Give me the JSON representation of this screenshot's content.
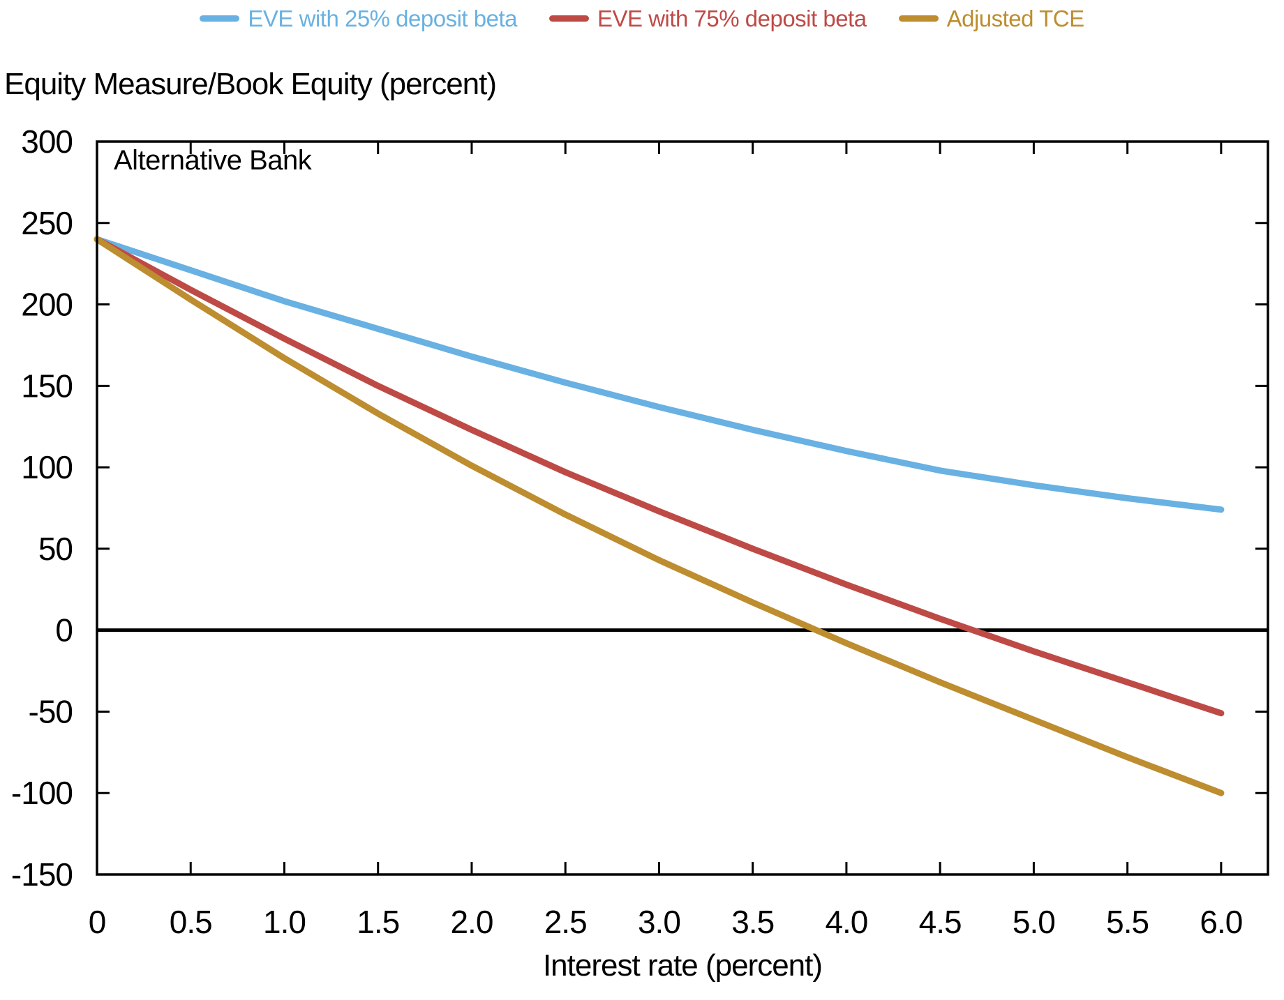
{
  "page": {
    "background": "#ffffff",
    "axis_color": "#000000"
  },
  "legend": {
    "position": "top"
  },
  "chart_data": {
    "type": "line",
    "title": "Equity Measure/Book Equity (percent)",
    "xlabel": "Interest rate (percent)",
    "ylabel": "",
    "annotation": "Alternative Bank",
    "grid": false,
    "zero_line": true,
    "legend_position": "top",
    "xlim": [
      0,
      6.25
    ],
    "ylim": [
      -150,
      300
    ],
    "x": [
      0,
      0.5,
      1.0,
      1.5,
      2.0,
      2.5,
      3.0,
      3.5,
      4.0,
      4.5,
      5.0,
      5.5,
      6.0
    ],
    "x_tick_labels": [
      "0",
      "0.5",
      "1.0",
      "1.5",
      "2.0",
      "2.5",
      "3.0",
      "3.5",
      "4.0",
      "4.5",
      "5.0",
      "5.5",
      "6.0"
    ],
    "y_ticks": [
      300,
      250,
      200,
      150,
      100,
      50,
      0,
      -50,
      -100,
      -150
    ],
    "series": [
      {
        "name": "EVE with 25% deposit beta",
        "color": "#68B1E2",
        "values": [
          240,
          221,
          202,
          185,
          168,
          152,
          137,
          123,
          110,
          98,
          89,
          81,
          74
        ]
      },
      {
        "name": "EVE with 75% deposit beta",
        "color": "#BE4A46",
        "values": [
          240,
          209,
          179,
          150,
          123,
          97,
          73,
          50,
          28,
          7,
          -13,
          -32,
          -51
        ]
      },
      {
        "name": "Adjusted TCE",
        "color": "#BD8D2F",
        "values": [
          240,
          203,
          167,
          133,
          101,
          71,
          43,
          17,
          -8,
          -32,
          -55,
          -78,
          -100
        ]
      }
    ],
    "zero_crossings": {
      "Adjusted TCE": 3.84,
      "EVE with 75% deposit beta": 4.68
    }
  }
}
